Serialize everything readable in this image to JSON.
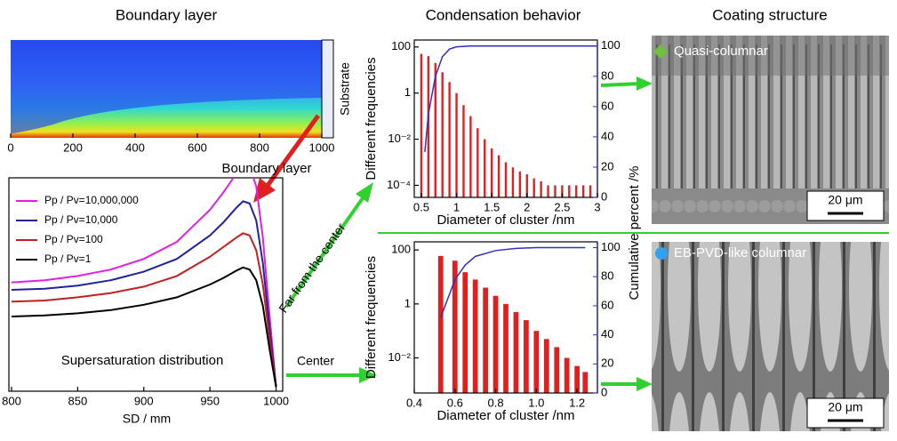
{
  "headings": {
    "boundary": "Boundary layer",
    "condensation": "Condensation behavior",
    "coating": "Coating structure"
  },
  "annotations": {
    "boundary_layer": "Boundary layer",
    "far": "Far from the center",
    "center": "Center"
  },
  "coatings": [
    {
      "label": "Quasi-columnar",
      "scale": "20 μm"
    },
    {
      "label": "EB-PVD-like columnar",
      "scale": "20 μm"
    }
  ],
  "chart_data": [
    {
      "type": "heatmap",
      "label": "Substrate",
      "xlim": [
        0,
        1000
      ],
      "xticks": [
        0,
        200,
        400,
        600,
        800,
        1000
      ]
    },
    {
      "type": "line",
      "title": "Supersaturation distribution",
      "xlabel": "SD / mm",
      "x": [
        800,
        825,
        850,
        875,
        900,
        925,
        950,
        960,
        970,
        975,
        980,
        985,
        990,
        995,
        1000
      ],
      "xlim": [
        798,
        1005
      ],
      "xticks": [
        800,
        850,
        900,
        950,
        1000
      ],
      "ylim": [
        0,
        100
      ],
      "series": [
        {
          "name": "Pp / Pv=10,000,000",
          "color": "#e020e0",
          "values": [
            51,
            52,
            54,
            57,
            62,
            70,
            85,
            93,
            102,
            106,
            105,
            96,
            72,
            36,
            2
          ]
        },
        {
          "name": "Pp / Pv=10,000",
          "color": "#22229a",
          "values": [
            47.5,
            48,
            49.5,
            52,
            56,
            62,
            73,
            79,
            86,
            89,
            88,
            80,
            60,
            30,
            2
          ]
        },
        {
          "name": "Pp / Pv=100",
          "color": "#c02020",
          "values": [
            42,
            42.5,
            44,
            46,
            49,
            54,
            63,
            67.5,
            72,
            74,
            73,
            66,
            50,
            25,
            2
          ]
        },
        {
          "name": "Pp / Pv=1",
          "color": "#000000",
          "values": [
            35,
            35.5,
            36.5,
            38,
            40.5,
            44,
            50,
            53,
            56.5,
            58,
            57,
            52,
            40,
            20,
            2
          ]
        }
      ]
    },
    {
      "type": "histogram",
      "ylabel": "Different frequencies",
      "xlabel": "Diameter of cluster /nm",
      "y2label": "Cumulative percent /%",
      "color": "#e02020",
      "log_y": true,
      "x": [
        0.5,
        0.6,
        0.7,
        0.8,
        0.9,
        1.0,
        1.1,
        1.2,
        1.3,
        1.4,
        1.5,
        1.6,
        1.7,
        1.8,
        1.9,
        2.0,
        2.1,
        2.2,
        2.3,
        2.4,
        2.5,
        2.6,
        2.7,
        2.8,
        2.9
      ],
      "values": [
        50,
        40,
        20,
        8,
        3,
        1,
        0.3,
        0.1,
        0.03,
        0.01,
        0.004,
        0.002,
        0.001,
        0.0006,
        0.0004,
        0.0003,
        0.0002,
        0.00015,
        0.0001,
        0.0001,
        0.0001,
        0.0001,
        0.0001,
        0.0001,
        0.0001
      ],
      "bar_width": 0.03,
      "cumulative": {
        "color": "#3030c0",
        "axis": "y2",
        "x": [
          0.55,
          0.6,
          0.7,
          0.8,
          0.9,
          1.0,
          1.2,
          3.0
        ],
        "values": [
          30,
          55,
          80,
          93,
          98,
          99.5,
          100,
          100
        ]
      },
      "xlim": [
        0.4,
        3.0
      ],
      "xticks": [
        0.5,
        1,
        1.5,
        2,
        2.5,
        3
      ],
      "ylim": [
        3e-05,
        200
      ],
      "yticks": [
        100,
        1,
        {
          "value": 0.01,
          "label": "10⁻²"
        },
        {
          "value": 0.0001,
          "label": "10⁻⁴"
        }
      ],
      "y2lim": [
        0,
        104
      ],
      "y2ticks": [
        0,
        20,
        40,
        60,
        80,
        100
      ]
    },
    {
      "type": "histogram",
      "ylabel": "Different frequencies",
      "xlabel": "Diameter of cluster /nm",
      "color": "#e02020",
      "log_y": true,
      "x": [
        0.53,
        0.6,
        0.65,
        0.7,
        0.75,
        0.8,
        0.85,
        0.9,
        0.95,
        1.0,
        1.05,
        1.1,
        1.15,
        1.2,
        1.24
      ],
      "values": [
        60,
        40,
        15,
        8,
        4,
        2,
        1,
        0.5,
        0.25,
        0.1,
        0.05,
        0.025,
        0.01,
        0.005,
        0.003
      ],
      "bar_width": 0.025,
      "cumulative": {
        "color": "#3030c0",
        "axis": "y2",
        "x": [
          0.53,
          0.6,
          0.65,
          0.7,
          0.8,
          0.9,
          1.0,
          1.24
        ],
        "values": [
          52,
          78,
          88,
          94,
          98,
          99.5,
          100,
          100
        ]
      },
      "xlim": [
        0.4,
        1.3
      ],
      "xticks": [
        0.4,
        0.6,
        0.8,
        {
          "value": 1.0,
          "label": "1.0"
        },
        1.2
      ],
      "ylim": [
        0.0005,
        200
      ],
      "yticks": [
        100,
        1,
        {
          "value": 0.01,
          "label": "10⁻²"
        }
      ],
      "y2lim": [
        0,
        104
      ],
      "y2ticks": [
        0,
        20,
        40,
        60,
        80,
        100
      ]
    }
  ]
}
